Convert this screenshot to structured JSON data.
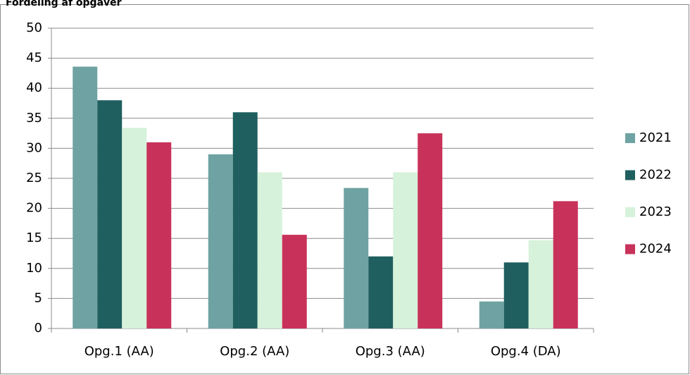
{
  "chart_data": {
    "type": "bar",
    "title": "Fordeling af opgaver",
    "categories": [
      "Opg.1 (AA)",
      "Opg.2 (AA)",
      "Opg.3 (AA)",
      "Opg.4 (DA)"
    ],
    "series": [
      {
        "name": "2021",
        "color": "#6fa3a3",
        "values": [
          43.6,
          29,
          23.4,
          4.5
        ]
      },
      {
        "name": "2022",
        "color": "#1f5f5f",
        "values": [
          38,
          36,
          12,
          11
        ]
      },
      {
        "name": "2023",
        "color": "#d6f2da",
        "values": [
          33.4,
          26,
          26,
          14.7
        ]
      },
      {
        "name": "2024",
        "color": "#c8325a",
        "values": [
          31,
          15.6,
          32.5,
          21.2
        ]
      }
    ],
    "ylim": [
      0,
      50
    ],
    "yticks": [
      0,
      5,
      10,
      15,
      20,
      25,
      30,
      35,
      40,
      45,
      50
    ],
    "grid": true,
    "legend": "right"
  }
}
